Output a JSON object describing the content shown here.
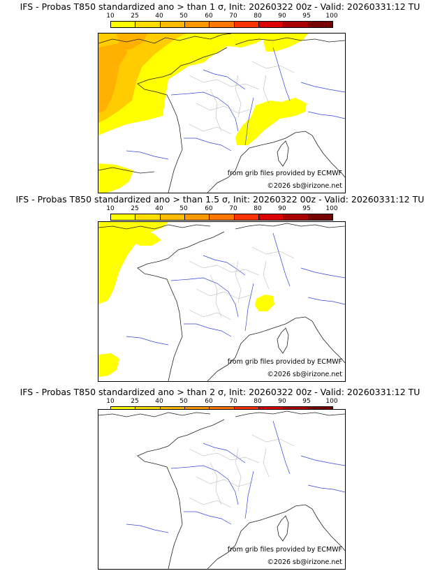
{
  "colorbar": {
    "ticks": [
      "10",
      "25",
      "40",
      "50",
      "60",
      "70",
      "80",
      "90",
      "95",
      "100"
    ],
    "colors": [
      "#ffff00",
      "#ffdd00",
      "#ffbb00",
      "#ff9900",
      "#ff7700",
      "#ff3300",
      "#dd0000",
      "#aa0000",
      "#770000"
    ]
  },
  "panels": [
    {
      "title": "IFS - Probas T850  standardized ano > than 1 σ, Init: 20260322 00z - Valid: 20260331:12 TU",
      "credit_source": "from grib files provided by ECMWF",
      "credit_copyright": "©2026 sb@irizone.net",
      "fill_colors": {
        "yellow": "#ffff00",
        "orange": "#ffcc00",
        "dark_orange": "#ffb000"
      }
    },
    {
      "title": "IFS - Probas T850  standardized ano > than 1.5 σ, Init: 20260322 00z - Valid: 20260331:12 TU",
      "credit_source": "from grib files provided by ECMWF",
      "credit_copyright": "©2026 sb@irizone.net",
      "fill_colors": {
        "yellow": "#ffff00"
      }
    },
    {
      "title": "IFS - Probas T850  standardized ano > than 2 σ, Init: 20260322 00z - Valid: 20260331:12 TU",
      "credit_source": "from grib files provided by ECMWF",
      "credit_copyright": "©2026 sb@irizone.net",
      "fill_colors": {}
    }
  ]
}
